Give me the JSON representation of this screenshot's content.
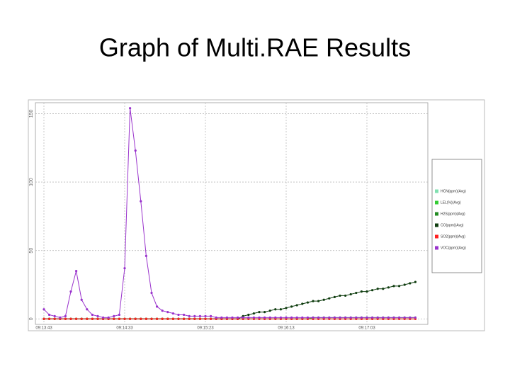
{
  "chart_data": {
    "type": "line",
    "title": "Graph of Multi.RAE Results",
    "categories": [
      "09:13:43",
      null,
      null,
      null,
      null,
      null,
      null,
      null,
      null,
      null,
      null,
      null,
      null,
      null,
      null,
      "09:14:33",
      null,
      null,
      null,
      null,
      null,
      null,
      null,
      null,
      null,
      null,
      null,
      null,
      null,
      null,
      "09:15:23",
      null,
      null,
      null,
      null,
      null,
      null,
      null,
      null,
      null,
      null,
      null,
      null,
      null,
      null,
      "09:16:13",
      null,
      null,
      null,
      null,
      null,
      null,
      null,
      null,
      null,
      null,
      null,
      null,
      null,
      null,
      "09:17:03",
      null,
      null,
      null,
      null,
      null,
      null,
      null,
      null,
      null
    ],
    "series": [
      {
        "name": "HCN(ppm)(Avg)",
        "color": "#80e0b0",
        "values": [
          0,
          0,
          0,
          0,
          0,
          0,
          0,
          0,
          0,
          0,
          0,
          0,
          0,
          0,
          0,
          0,
          0,
          0,
          0,
          0,
          0,
          0,
          0,
          0,
          0,
          0,
          0,
          0,
          0,
          0,
          0,
          0,
          0,
          0,
          0,
          0,
          0,
          0,
          0,
          0,
          0,
          0,
          0,
          0,
          0,
          0,
          0,
          0,
          0,
          0,
          0,
          0,
          0,
          0,
          0,
          0,
          0,
          0,
          0,
          0,
          0,
          0,
          0,
          0,
          0,
          0,
          0,
          0,
          0,
          0
        ]
      },
      {
        "name": "LEL(%)(Avg)",
        "color": "#33cc33",
        "values": [
          0,
          0,
          0,
          0,
          0,
          0,
          0,
          0,
          0,
          0,
          0,
          0,
          0,
          0,
          0,
          0,
          0,
          0,
          0,
          0,
          0,
          0,
          0,
          0,
          0,
          0,
          0,
          0,
          0,
          0,
          0,
          0,
          0,
          0,
          0,
          0,
          0,
          0,
          0,
          0,
          0,
          0,
          0,
          0,
          0,
          0,
          0,
          0,
          0,
          0,
          1,
          1,
          1,
          1,
          1,
          1,
          1,
          1,
          1,
          1,
          1,
          1,
          1,
          1,
          1,
          1,
          1,
          1,
          1,
          1
        ]
      },
      {
        "name": "H2S(ppm)(Avg)",
        "color": "#228b22",
        "values": [
          0,
          0,
          0,
          0,
          0,
          0,
          0,
          0,
          0,
          0,
          0,
          0,
          0,
          0,
          0,
          0,
          0,
          0,
          0,
          0,
          0,
          0,
          0,
          0,
          0,
          0,
          0,
          0,
          0,
          0,
          0,
          0,
          0,
          0,
          0,
          0,
          0,
          0,
          0,
          0,
          0,
          0,
          0,
          0,
          0,
          0,
          0,
          0,
          0,
          0,
          0,
          0,
          0,
          0,
          0,
          0,
          0,
          0,
          0,
          0,
          0,
          0,
          0,
          0,
          0,
          0,
          0,
          0,
          0,
          0
        ]
      },
      {
        "name": "CO(ppm)(Avg)",
        "color": "#0f3d0f",
        "values": [
          0,
          0,
          0,
          0,
          0,
          0,
          0,
          0,
          0,
          0,
          0,
          0,
          0,
          0,
          0,
          0,
          0,
          0,
          0,
          0,
          0,
          0,
          0,
          0,
          0,
          0,
          0,
          0,
          0,
          0,
          0,
          0,
          0,
          0,
          0,
          0,
          0,
          2,
          3,
          4,
          5,
          5,
          6,
          7,
          7,
          8,
          9,
          10,
          11,
          12,
          13,
          13,
          14,
          15,
          16,
          17,
          17,
          18,
          19,
          20,
          20,
          21,
          22,
          22,
          23,
          24,
          24,
          25,
          26,
          27
        ]
      },
      {
        "name": "SO2(ppm)(Avg)",
        "color": "#ff2020",
        "values": [
          0,
          0,
          0,
          0,
          0,
          0,
          0,
          0,
          0,
          0,
          0,
          0,
          0,
          0,
          0,
          0,
          0,
          0,
          0,
          0,
          0,
          0,
          0,
          0,
          0,
          0,
          0,
          0,
          0,
          0,
          0,
          0,
          0,
          0,
          0,
          0,
          0,
          0,
          0,
          0,
          0,
          0,
          0,
          0,
          0,
          0,
          0,
          0,
          0,
          0,
          0,
          0,
          0,
          0,
          0,
          0,
          0,
          0,
          0,
          0,
          0,
          0,
          0,
          0,
          0,
          0,
          0,
          0,
          0,
          0
        ]
      },
      {
        "name": "VOC(ppm)(Avg)",
        "color": "#9932cc",
        "values": [
          7,
          3,
          2,
          1,
          2,
          20,
          35,
          14,
          7,
          3,
          2,
          1,
          1,
          2,
          3,
          37,
          154,
          123,
          86,
          46,
          19,
          9,
          6,
          5,
          4,
          3,
          3,
          2,
          2,
          2,
          2,
          2,
          1,
          1,
          1,
          1,
          1,
          1,
          1,
          1,
          1,
          1,
          1,
          1,
          1,
          1,
          1,
          1,
          1,
          1,
          1,
          1,
          1,
          1,
          1,
          1,
          1,
          1,
          1,
          1,
          1,
          1,
          1,
          1,
          1,
          1,
          1,
          1,
          1,
          1
        ]
      }
    ],
    "ylim": [
      -4,
      158
    ],
    "yticks": [
      0,
      50,
      100,
      150
    ],
    "grid": true
  }
}
